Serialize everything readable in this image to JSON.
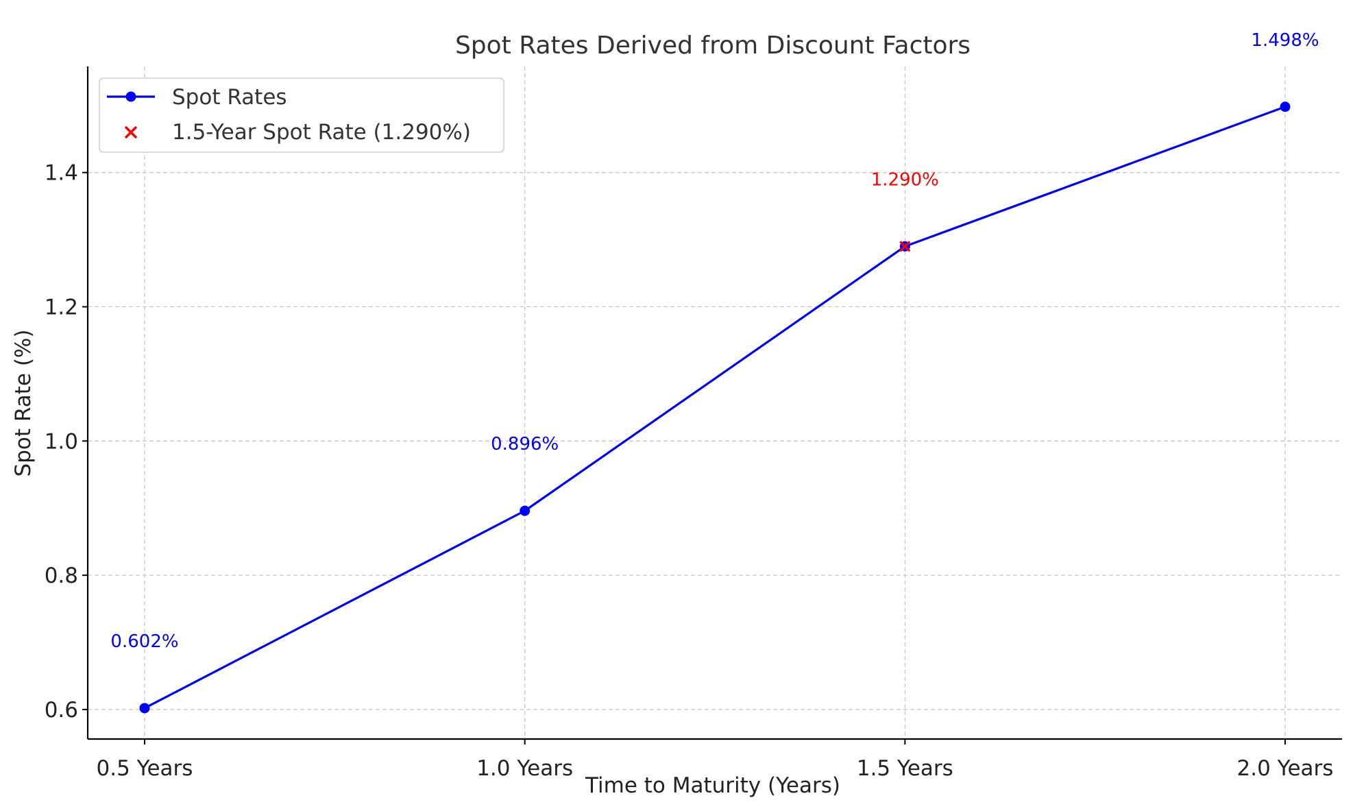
{
  "chart_data": {
    "type": "line",
    "title": "Spot Rates Derived from Discount Factors",
    "xlabel": "Time to Maturity (Years)",
    "ylabel": "Spot Rate (%)",
    "categories": [
      "0.5 Years",
      "1.0 Years",
      "1.5 Years",
      "2.0 Years"
    ],
    "ylim": [
      0.556,
      1.558
    ],
    "yticks": [
      0.6,
      0.8,
      1.0,
      1.2,
      1.4
    ],
    "ytick_labels": [
      "0.6",
      "0.8",
      "1.0",
      "1.2",
      "1.4"
    ],
    "grid": true,
    "legend_position": "top-left",
    "series": [
      {
        "name": "Spot Rates",
        "values": [
          0.602,
          0.896,
          1.29,
          1.498
        ],
        "labels": [
          "0.602%",
          "0.896%",
          "1.290%",
          "1.498%"
        ],
        "color": "#0000ff",
        "marker": "circle"
      }
    ],
    "highlight": {
      "name": "1.5-Year Spot Rate (1.290%)",
      "category": "1.5 Years",
      "value": 1.29,
      "label": "1.290%",
      "color": "#ff0000",
      "marker": "x"
    }
  }
}
